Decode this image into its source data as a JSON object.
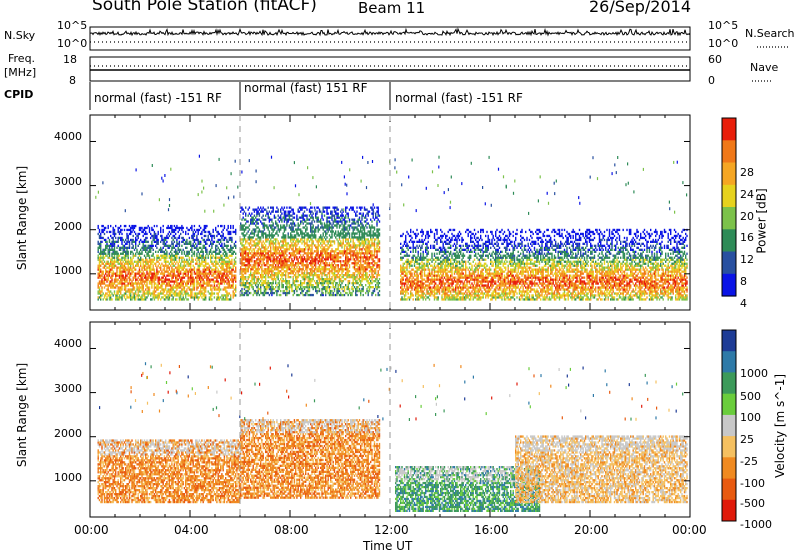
{
  "header": {
    "title": "South Pole Station (fitACF)",
    "beam": "Beam 11",
    "date": "26/Sep/2014"
  },
  "summary_panels": {
    "nsky_label": "N.Sky",
    "nsky_ticks": [
      "10^5",
      "10^0"
    ],
    "nsearch_label": "N.Search",
    "nsearch_ticks": [
      "10^5",
      "10^0"
    ],
    "freq_label": "Freq.",
    "freq_unit": "[MHz]",
    "freq_ticks": [
      "18",
      "8"
    ],
    "nave_label": "Nave",
    "nave_ticks": [
      "60",
      "0"
    ],
    "cpid_label": "CPID",
    "cpid_segments": [
      {
        "start": "00:00",
        "end": "06:00",
        "label": "normal (fast) -151 RF"
      },
      {
        "start": "06:00",
        "end": "12:00",
        "label": "normal (fast) 151 RF"
      },
      {
        "start": "12:00",
        "end": "24:00",
        "label": "normal (fast) -151 RF"
      }
    ]
  },
  "axes": {
    "x_ticks": [
      "00:00",
      "04:00",
      "08:00",
      "12:00",
      "16:00",
      "20:00",
      "00:00"
    ],
    "x_title": "Time UT",
    "y_title": "Slant Range [km]",
    "y_ticks": [
      "1000",
      "2000",
      "3000",
      "4000"
    ]
  },
  "chart_data": [
    {
      "type": "heatmap",
      "title": "",
      "xlabel": "Time UT",
      "ylabel": "Slant Range [km]",
      "x_range_hours": [
        0,
        24
      ],
      "ylim": [
        180,
        4600
      ],
      "colorbar": {
        "label": "Power [dB]",
        "ticks": [
          "4",
          "8",
          "12",
          "16",
          "20",
          "24",
          "28"
        ],
        "colors": [
          "#0a14e6",
          "#2850a0",
          "#2e8b57",
          "#7cc24a",
          "#e6d21e",
          "#f5a623",
          "#f07818",
          "#e81e0a"
        ]
      },
      "echo_regions": [
        {
          "t0": 0.3,
          "t1": 5.8,
          "r0": 400,
          "r1": 2100,
          "peak_range": 900,
          "level": "high"
        },
        {
          "t0": 6.0,
          "t1": 11.6,
          "r0": 500,
          "r1": 2500,
          "peak_range": 1300,
          "level": "high"
        },
        {
          "t0": 12.4,
          "t1": 23.9,
          "r0": 400,
          "r1": 2000,
          "peak_range": 800,
          "level": "high"
        }
      ]
    },
    {
      "type": "heatmap",
      "title": "",
      "xlabel": "Time UT",
      "ylabel": "Slant Range [km]",
      "x_range_hours": [
        0,
        24
      ],
      "ylim": [
        180,
        4600
      ],
      "colorbar": {
        "label": "Velocity [m s^-1]",
        "ticks": [
          "1000",
          "500",
          "100",
          "25",
          "-25",
          "-100",
          "-500",
          "-1000"
        ],
        "colors": [
          "#1e3c96",
          "#2e7aa8",
          "#3c9a5a",
          "#6acd3c",
          "#c8c8c8",
          "#f5c060",
          "#f08a20",
          "#e85a10",
          "#e01a0a"
        ]
      },
      "echo_regions": [
        {
          "t0": 0.3,
          "t1": 6.0,
          "r0": 500,
          "r1": 1900,
          "dominant_velocity": "-500"
        },
        {
          "t0": 6.0,
          "t1": 11.6,
          "r0": 600,
          "r1": 2400,
          "dominant_velocity": "-500"
        },
        {
          "t0": 12.2,
          "t1": 18.0,
          "r0": 300,
          "r1": 1300,
          "dominant_velocity": "100"
        },
        {
          "t0": 17.0,
          "t1": 23.9,
          "r0": 500,
          "r1": 2000,
          "dominant_velocity": "-100"
        }
      ]
    }
  ]
}
